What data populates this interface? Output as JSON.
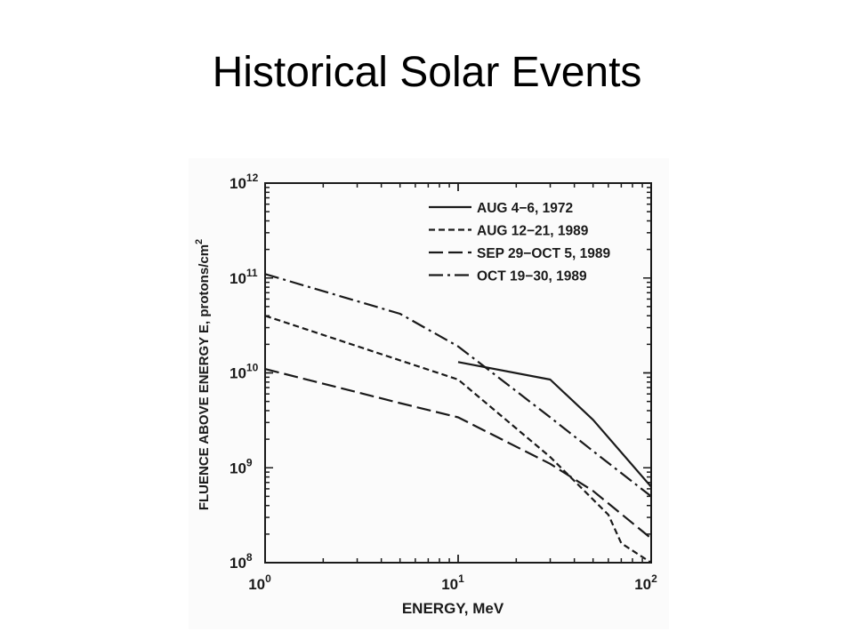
{
  "slide": {
    "title": "Historical Solar Events"
  },
  "chart_data": {
    "type": "line",
    "xscale": "log",
    "yscale": "log",
    "xlim": [
      1,
      100
    ],
    "ylim": [
      100000000,
      1000000000000
    ],
    "xlabel": "ENERGY, MeV",
    "ylabel_main": "FLUENCE ABOVE ENERGY E, protons/cm",
    "ylabel_sup": "2",
    "x_ticks": [
      {
        "value": 1,
        "base": "10",
        "exp": "0"
      },
      {
        "value": 10,
        "base": "10",
        "exp": "1"
      },
      {
        "value": 100,
        "base": "10",
        "exp": "2"
      }
    ],
    "y_ticks": [
      {
        "value": 100000000,
        "base": "10",
        "exp": "8"
      },
      {
        "value": 1000000000,
        "base": "10",
        "exp": "9"
      },
      {
        "value": 10000000000,
        "base": "10",
        "exp": "10"
      },
      {
        "value": 100000000000,
        "base": "10",
        "exp": "11"
      },
      {
        "value": 1000000000000,
        "base": "10",
        "exp": "12"
      }
    ],
    "legend_position": "top-right",
    "series": [
      {
        "name": "AUG 4−6, 1972",
        "dash": "solid",
        "x": [
          10,
          30,
          50,
          100
        ],
        "y": [
          13000000000,
          8500000000,
          3200000000,
          630000000
        ]
      },
      {
        "name": "AUG 12−21, 1989",
        "dash": "short-dash",
        "x": [
          1,
          10,
          30,
          60,
          70,
          100
        ],
        "y": [
          40000000000,
          8500000000,
          1300000000,
          320000000,
          160000000,
          100000000
        ]
      },
      {
        "name": "SEP 29−OCT 5, 1989",
        "dash": "long-dash",
        "x": [
          1,
          5,
          10,
          30,
          50,
          100
        ],
        "y": [
          11000000000,
          4800000000,
          3400000000,
          1100000000,
          570000000,
          180000000
        ]
      },
      {
        "name": "OCT 19−30, 1989",
        "dash": "dash-dot",
        "x": [
          1,
          5,
          10,
          30,
          50,
          100
        ],
        "y": [
          110000000000,
          42000000000,
          19000000000,
          3400000000,
          1500000000,
          500000000
        ]
      }
    ]
  }
}
